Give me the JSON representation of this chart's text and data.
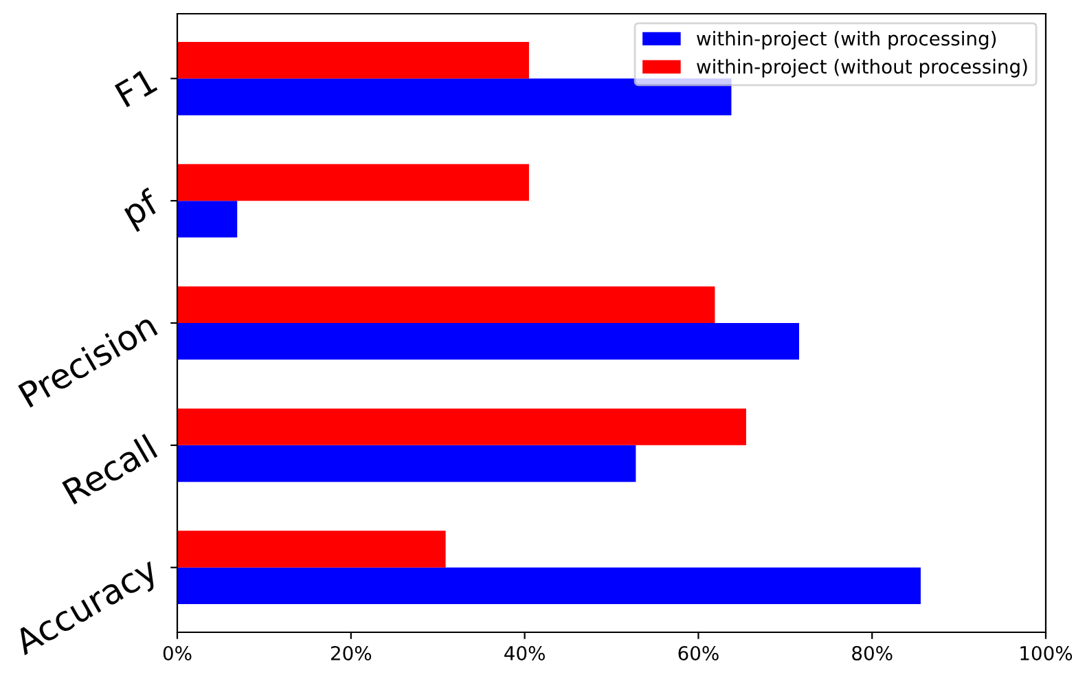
{
  "chart_data": {
    "type": "bar",
    "orientation": "horizontal",
    "categories": [
      "F1",
      "pf",
      "Precision",
      "Recall",
      "Accuracy"
    ],
    "series": [
      {
        "name": "within-project (with processing)",
        "color": "#0000ff",
        "values": [
          63.8,
          6.9,
          71.6,
          52.8,
          85.6
        ]
      },
      {
        "name": "within-project (without processing)",
        "color": "#ff0000",
        "values": [
          40.5,
          40.5,
          61.9,
          65.5,
          30.9
        ]
      }
    ],
    "xlim": [
      0,
      100
    ],
    "xticks": [
      {
        "value": 0,
        "label": "0%"
      },
      {
        "value": 20,
        "label": "20%"
      },
      {
        "value": 40,
        "label": "40%"
      },
      {
        "value": 60,
        "label": "60%"
      },
      {
        "value": 80,
        "label": "80%"
      },
      {
        "value": 100,
        "label": "100%"
      }
    ],
    "legend": "top right",
    "grid": false
  }
}
